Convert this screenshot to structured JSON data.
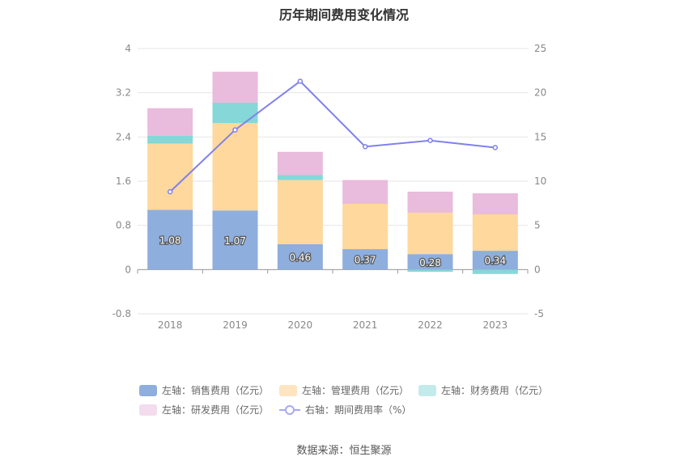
{
  "chart_data": {
    "type": "bar",
    "title": "历年期间费用变化情况",
    "categories": [
      "2018",
      "2019",
      "2020",
      "2021",
      "2022",
      "2023"
    ],
    "left_axis": {
      "ticks": [
        "4",
        "3.2",
        "2.4",
        "1.6",
        "0.8",
        "0",
        "-0.8"
      ],
      "range": [
        -0.8,
        4
      ]
    },
    "right_axis": {
      "ticks": [
        "25",
        "20",
        "15",
        "10",
        "5",
        "0",
        "-5"
      ],
      "range": [
        -5,
        25
      ]
    },
    "stacked_series": [
      {
        "name": "左轴：销售费用（亿元）",
        "color": "#8eaede",
        "values": [
          1.08,
          1.07,
          0.46,
          0.37,
          0.28,
          0.34
        ],
        "labels": [
          "1.08",
          "1.07",
          "0.46",
          "0.37",
          "0.28",
          "0.34"
        ]
      },
      {
        "name": "左轴：管理费用（亿元）",
        "color": "#fed89c",
        "values": [
          1.2,
          1.58,
          1.16,
          0.82,
          0.75,
          0.66
        ]
      },
      {
        "name": "左轴：财务费用（亿元）",
        "color": "#86d7d8",
        "values": [
          0.14,
          0.37,
          0.09,
          0.0,
          -0.04,
          -0.08
        ]
      },
      {
        "name": "左轴：研发费用（亿元）",
        "color": "#e9bbdc",
        "values": [
          0.5,
          0.56,
          0.42,
          0.43,
          0.38,
          0.38
        ]
      }
    ],
    "line_series": {
      "name": "右轴：期间费用率（%）",
      "color": "#8080ec",
      "values": [
        8.8,
        15.8,
        21.3,
        13.9,
        14.6,
        13.8
      ]
    },
    "grid": true,
    "legend_position": "bottom"
  },
  "legend": [
    {
      "label": "左轴：销售费用（亿元）",
      "color": "#8eaede",
      "kind": "bar"
    },
    {
      "label": "左轴：管理费用（亿元）",
      "color": "#fee4c1",
      "kind": "bar"
    },
    {
      "label": "左轴：财务费用（亿元）",
      "color": "#c3ebec",
      "kind": "bar"
    },
    {
      "label": "左轴：研发费用（亿元）",
      "color": "#f2dcee",
      "kind": "bar"
    },
    {
      "label": "右轴：期间费用率（%）",
      "color": "#a8a8f2",
      "kind": "line"
    }
  ],
  "source": "数据来源：恒生聚源"
}
